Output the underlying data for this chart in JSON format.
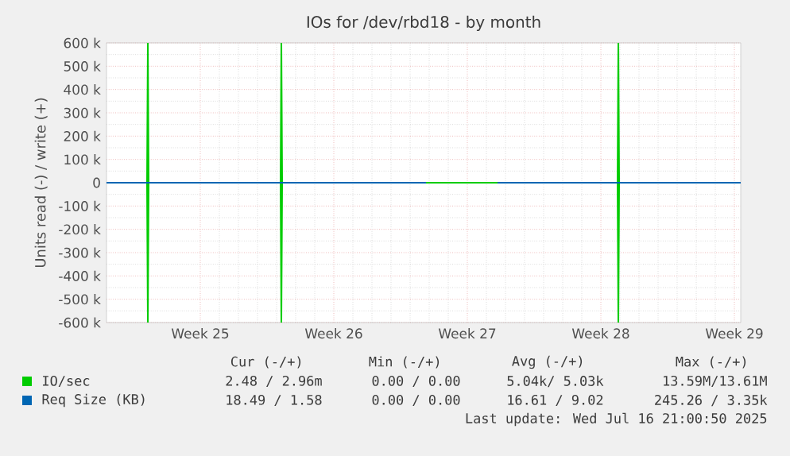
{
  "chart_data": {
    "type": "line",
    "title": "IOs for /dev/rbd18 - by month",
    "ylabel": "Units read (-) / write (+)",
    "xlim": [
      "2025-06-11T02:00",
      "2025-07-14T08:00"
    ],
    "xticks": [
      {
        "value": "2025-06-16",
        "label": "Week 25"
      },
      {
        "value": "2025-06-23",
        "label": "Week 26"
      },
      {
        "value": "2025-06-30",
        "label": "Week 27"
      },
      {
        "value": "2025-07-07",
        "label": "Week 28"
      },
      {
        "value": "2025-07-14",
        "label": "Week 29"
      }
    ],
    "ylim": [
      -600000,
      600000
    ],
    "yticks": [
      {
        "value": -600000,
        "label": "-600 k"
      },
      {
        "value": -500000,
        "label": "-500 k"
      },
      {
        "value": -400000,
        "label": "-400 k"
      },
      {
        "value": -300000,
        "label": "-300 k"
      },
      {
        "value": -200000,
        "label": "-200 k"
      },
      {
        "value": -100000,
        "label": "-100 k"
      },
      {
        "value": 0,
        "label": "0"
      },
      {
        "value": 100000,
        "label": "100 k"
      },
      {
        "value": 200000,
        "label": "200 k"
      },
      {
        "value": 300000,
        "label": "300 k"
      },
      {
        "value": 400000,
        "label": "400 k"
      },
      {
        "value": 500000,
        "label": "500 k"
      },
      {
        "value": 600000,
        "label": "600 k"
      }
    ],
    "grid": true,
    "legend": "bottom",
    "marker": "none",
    "line_style": "solid",
    "series": [
      {
        "name": "IO/sec",
        "color": "#00cc00",
        "x": [
          "2025-06-11T02:00",
          "2025-06-13T05:00",
          "2025-06-13T06:00",
          "2025-06-13T07:00",
          "2025-06-20T05:00",
          "2025-06-20T06:00",
          "2025-06-20T07:00",
          "2025-07-07T21:00",
          "2025-07-07T22:00",
          "2025-07-07T23:00",
          "2025-07-14T08:00"
        ],
        "values": [
          0,
          0,
          600000,
          0,
          0,
          600000,
          0,
          0,
          600000,
          0,
          0
        ]
      },
      {
        "color": "#00cc00",
        "x": [
          "2025-06-11T02:00",
          "2025-06-13T05:00",
          "2025-06-13T06:00",
          "2025-06-13T07:00",
          "2025-06-20T05:00",
          "2025-06-20T06:00",
          "2025-06-20T07:00",
          "2025-07-07T21:00",
          "2025-07-07T22:00",
          "2025-07-07T23:00",
          "2025-07-14T08:00"
        ],
        "values": [
          0,
          0,
          -600000,
          0,
          0,
          -600000,
          0,
          0,
          -600000,
          0,
          0
        ]
      },
      {
        "name": "Req Size (KB)",
        "color": "#0066b3",
        "x": [
          "2025-06-11T02:00",
          "2025-06-27T20:00",
          "2025-06-27T21:00",
          "2025-07-01T13:00",
          "2025-07-01T14:00",
          "2025-07-14T08:00"
        ],
        "values": [
          0,
          0,
          null,
          null,
          0,
          0
        ]
      }
    ],
    "annotations": [
      "Cur (-/+)",
      "Min (-/+)",
      "Avg (-/+)",
      "Max (-/+)",
      "2.48 / 2.96m",
      "0.00 / 0.00",
      "5.04k/ 5.03k",
      "13.59M/13.61M",
      "18.49 / 1.58",
      "0.00 / 0.00",
      "16.61 / 9.02",
      "245.26 / 3.35k",
      "Last update: Wed Jul 16 21:00:50 2025"
    ]
  }
}
